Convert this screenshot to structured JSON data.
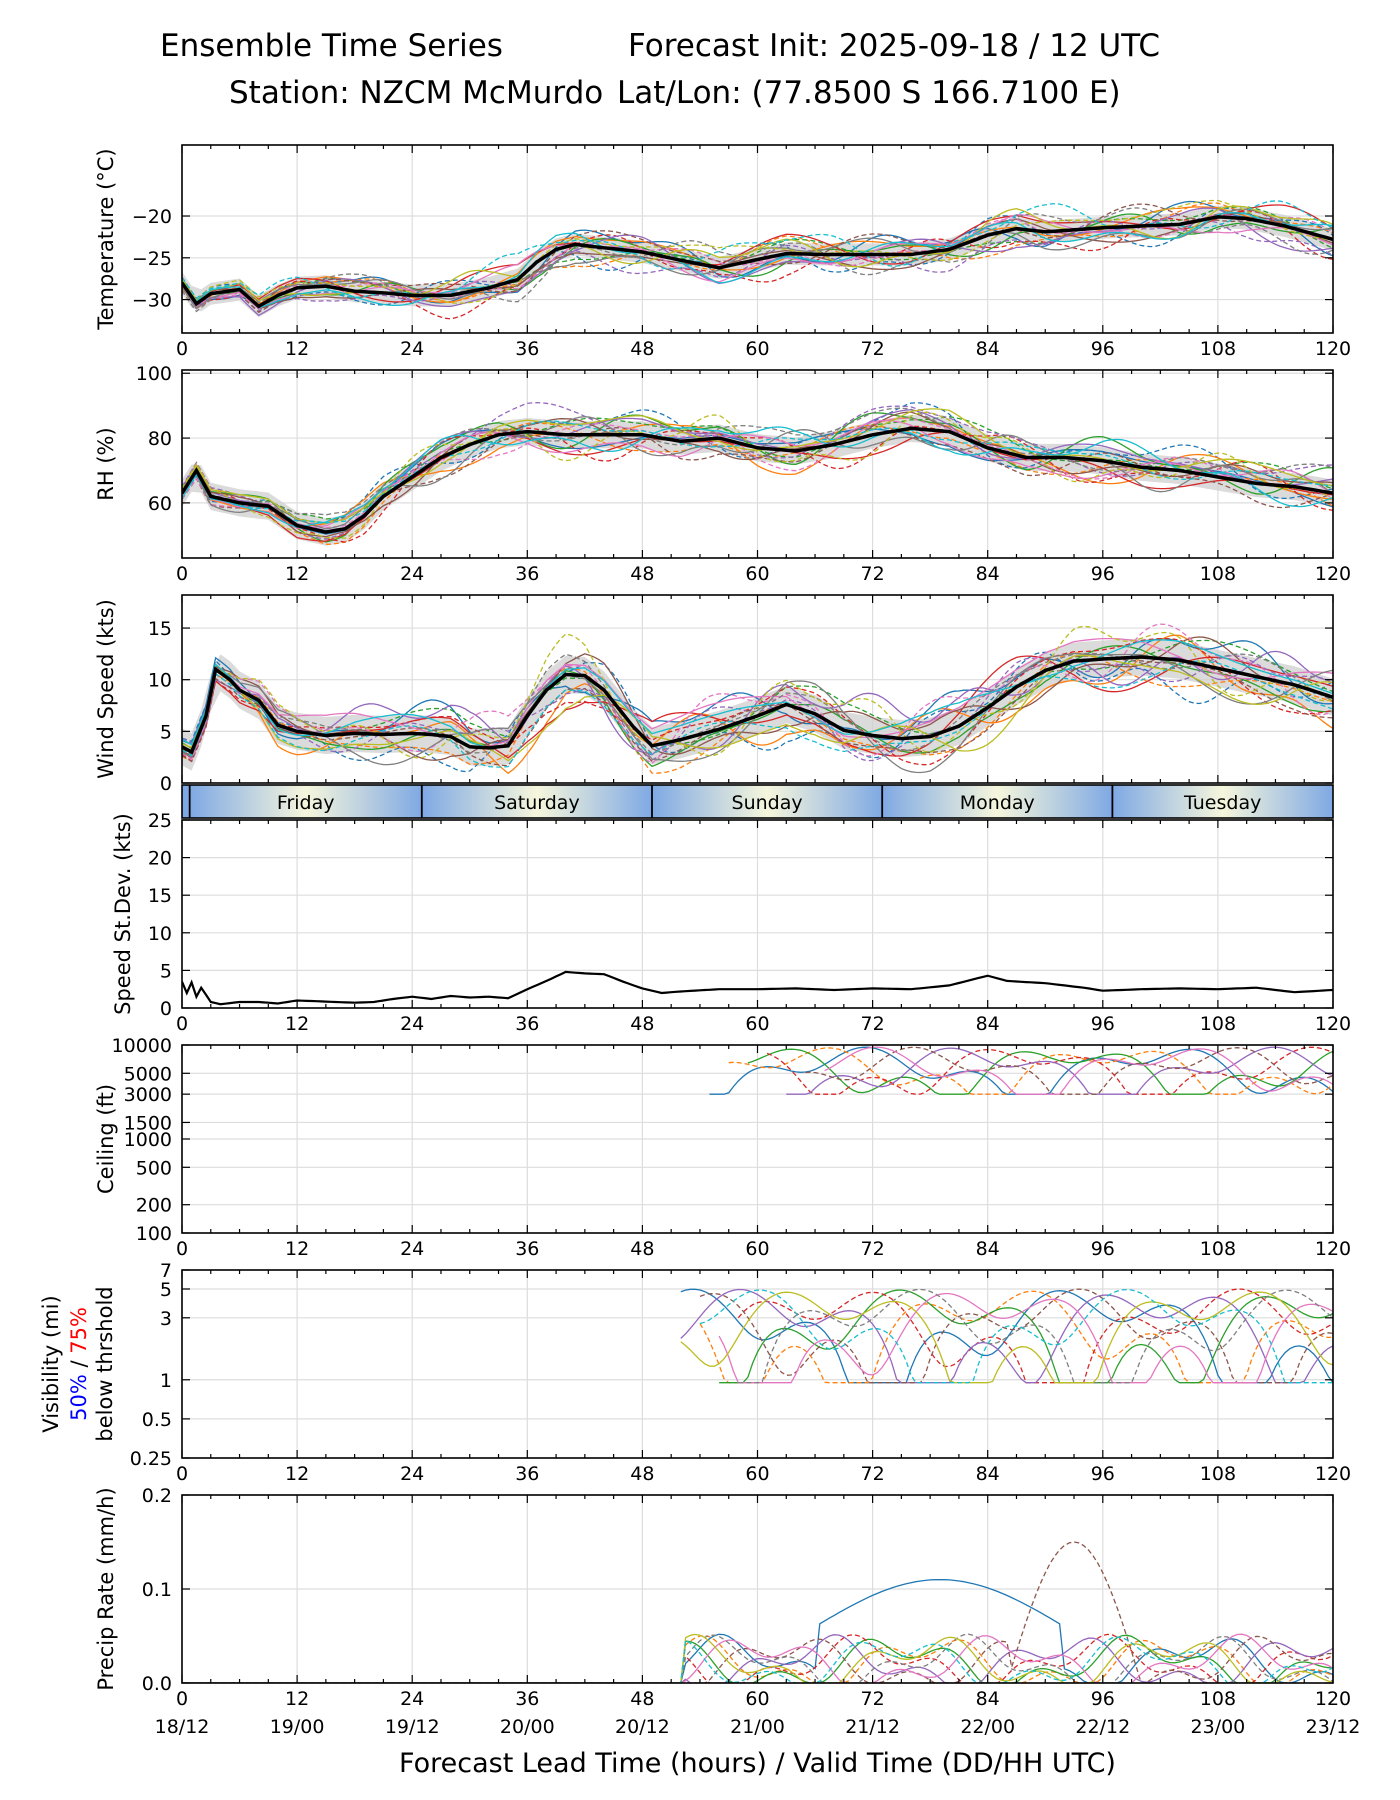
{
  "header": {
    "title_left": "Ensemble Time Series",
    "title_right": "Forecast Init: 2025-09-18 / 12 UTC",
    "station": "Station: NZCM McMurdo",
    "latlon": "Lat/Lon: (77.8500 S 166.7100 E)"
  },
  "chart_data": {
    "type": "line",
    "x_label": "Forecast Lead Time (hours) / Valid Time (DD/HH UTC)",
    "x_range": [
      0,
      120
    ],
    "x_ticks": [
      0,
      12,
      24,
      36,
      48,
      60,
      72,
      84,
      96,
      108,
      120
    ],
    "valid_time_labels": [
      "18/12",
      "19/00",
      "19/12",
      "20/00",
      "20/12",
      "21/00",
      "21/12",
      "22/00",
      "22/12",
      "23/00",
      "23/12"
    ],
    "days": [
      {
        "name": "Friday",
        "start": 0.8,
        "end": 25
      },
      {
        "name": "Saturday",
        "start": 25,
        "end": 49
      },
      {
        "name": "Sunday",
        "start": 49,
        "end": 73
      },
      {
        "name": "Monday",
        "start": 73,
        "end": 97
      },
      {
        "name": "Tuesday",
        "start": 97,
        "end": 120
      }
    ],
    "member_colors": [
      "#1f77b4",
      "#ff7f0e",
      "#2ca02c",
      "#d62728",
      "#9467bd",
      "#8c564b",
      "#e377c2",
      "#7f7f7f",
      "#bcbd22",
      "#17becf"
    ],
    "panels": [
      {
        "id": "temperature",
        "ylabel": "Temperature (°C)",
        "scale": "linear",
        "ylim": [
          -34,
          -11.5
        ],
        "yticks": [
          -30,
          -25,
          -20
        ],
        "ytick_labels": [
          "−30",
          "−25",
          "−20"
        ],
        "spread": 2.2,
        "mean": [
          [
            0,
            -28
          ],
          [
            1.5,
            -30.5
          ],
          [
            3,
            -29.3
          ],
          [
            6,
            -28.8
          ],
          [
            8,
            -30.8
          ],
          [
            10,
            -29.5
          ],
          [
            12,
            -28.6
          ],
          [
            15,
            -28.4
          ],
          [
            18,
            -29
          ],
          [
            21,
            -29.2
          ],
          [
            24,
            -29.5
          ],
          [
            28,
            -29.5
          ],
          [
            32,
            -28.6
          ],
          [
            35,
            -27.6
          ],
          [
            37,
            -25.5
          ],
          [
            39,
            -24
          ],
          [
            41,
            -23.4
          ],
          [
            44,
            -23.8
          ],
          [
            48,
            -24.3
          ],
          [
            52,
            -25.3
          ],
          [
            56,
            -26.2
          ],
          [
            60,
            -25.2
          ],
          [
            63,
            -24.5
          ],
          [
            67,
            -24.6
          ],
          [
            72,
            -24.6
          ],
          [
            76,
            -24.6
          ],
          [
            80,
            -24
          ],
          [
            84,
            -22.3
          ],
          [
            87,
            -21.5
          ],
          [
            90,
            -21.9
          ],
          [
            96,
            -21.4
          ],
          [
            100,
            -21.2
          ],
          [
            104,
            -21
          ],
          [
            108,
            -20.1
          ],
          [
            111,
            -20.3
          ],
          [
            115,
            -21.2
          ],
          [
            120,
            -22.8
          ]
        ]
      },
      {
        "id": "rh",
        "ylabel": "RH (%)",
        "scale": "linear",
        "ylim": [
          43,
          101
        ],
        "yticks": [
          60,
          80,
          100
        ],
        "ytick_labels": [
          "60",
          "80",
          "100"
        ],
        "spread": 7,
        "mean": [
          [
            0,
            63
          ],
          [
            1.5,
            70
          ],
          [
            3,
            62
          ],
          [
            6,
            60
          ],
          [
            9,
            59
          ],
          [
            12,
            53
          ],
          [
            15,
            51
          ],
          [
            17,
            52
          ],
          [
            19,
            56
          ],
          [
            21,
            62
          ],
          [
            24,
            68
          ],
          [
            27,
            74
          ],
          [
            30,
            78
          ],
          [
            33,
            81
          ],
          [
            36,
            82
          ],
          [
            40,
            81
          ],
          [
            44,
            81
          ],
          [
            48,
            81
          ],
          [
            52,
            79
          ],
          [
            56,
            80
          ],
          [
            60,
            77
          ],
          [
            64,
            76
          ],
          [
            68,
            78
          ],
          [
            72,
            81
          ],
          [
            76,
            83
          ],
          [
            80,
            82
          ],
          [
            84,
            77
          ],
          [
            88,
            74
          ],
          [
            92,
            74
          ],
          [
            96,
            73
          ],
          [
            100,
            71
          ],
          [
            104,
            70
          ],
          [
            108,
            68
          ],
          [
            112,
            66
          ],
          [
            116,
            65
          ],
          [
            120,
            63
          ]
        ]
      },
      {
        "id": "wind",
        "ylabel": "Wind Speed (kts)",
        "scale": "linear",
        "ylim": [
          0,
          18.2
        ],
        "yticks": [
          0,
          5,
          10,
          15
        ],
        "ytick_labels": [
          "0",
          "5",
          "10",
          "15"
        ],
        "spread": 3,
        "mean": [
          [
            0,
            3.5
          ],
          [
            1,
            3
          ],
          [
            2.5,
            6.5
          ],
          [
            3.5,
            11
          ],
          [
            5,
            10
          ],
          [
            6,
            9
          ],
          [
            8,
            8
          ],
          [
            10,
            5.6
          ],
          [
            12,
            5
          ],
          [
            15,
            4.6
          ],
          [
            18,
            4.8
          ],
          [
            21,
            4.7
          ],
          [
            24,
            4.8
          ],
          [
            26,
            4.7
          ],
          [
            28,
            4.5
          ],
          [
            30,
            3.5
          ],
          [
            32,
            3.4
          ],
          [
            34,
            3.6
          ],
          [
            36,
            6.5
          ],
          [
            38,
            9
          ],
          [
            40,
            10.5
          ],
          [
            42,
            10.4
          ],
          [
            44,
            9
          ],
          [
            47,
            5.5
          ],
          [
            49,
            3.6
          ],
          [
            52,
            4.2
          ],
          [
            56,
            5.2
          ],
          [
            60,
            6.5
          ],
          [
            63,
            7.6
          ],
          [
            66,
            6.7
          ],
          [
            69,
            5.1
          ],
          [
            72,
            4.6
          ],
          [
            75,
            4.3
          ],
          [
            78,
            4.5
          ],
          [
            81,
            5.5
          ],
          [
            84,
            7.3
          ],
          [
            87,
            9.3
          ],
          [
            90,
            10.9
          ],
          [
            93,
            11.8
          ],
          [
            96,
            12
          ],
          [
            100,
            12.2
          ],
          [
            104,
            11.9
          ],
          [
            108,
            11.1
          ],
          [
            112,
            10.3
          ],
          [
            116,
            9.5
          ],
          [
            120,
            8.3
          ]
        ]
      },
      {
        "id": "speed_stdev",
        "ylabel": "Speed St.Dev. (kts)",
        "scale": "linear",
        "ylim": [
          0,
          25
        ],
        "yticks": [
          0,
          5,
          10,
          15,
          20,
          25
        ],
        "ytick_labels": [
          "0",
          "5",
          "10",
          "15",
          "20",
          "25"
        ],
        "spread": 0,
        "mean": [
          [
            0,
            3.5
          ],
          [
            0.5,
            2
          ],
          [
            1,
            3.4
          ],
          [
            1.5,
            1.5
          ],
          [
            2,
            2.7
          ],
          [
            3,
            0.8
          ],
          [
            4,
            0.5
          ],
          [
            6,
            0.8
          ],
          [
            8,
            0.8
          ],
          [
            10,
            0.6
          ],
          [
            12,
            1
          ],
          [
            14,
            0.9
          ],
          [
            16,
            0.8
          ],
          [
            18,
            0.7
          ],
          [
            20,
            0.8
          ],
          [
            22,
            1.2
          ],
          [
            24,
            1.5
          ],
          [
            26,
            1.2
          ],
          [
            28,
            1.6
          ],
          [
            30,
            1.4
          ],
          [
            32,
            1.5
          ],
          [
            34,
            1.3
          ],
          [
            36,
            2.5
          ],
          [
            38,
            3.6
          ],
          [
            40,
            4.8
          ],
          [
            42,
            4.6
          ],
          [
            44,
            4.5
          ],
          [
            46,
            3.5
          ],
          [
            48,
            2.6
          ],
          [
            50,
            2
          ],
          [
            52,
            2.2
          ],
          [
            56,
            2.5
          ],
          [
            60,
            2.5
          ],
          [
            64,
            2.6
          ],
          [
            68,
            2.4
          ],
          [
            72,
            2.6
          ],
          [
            76,
            2.5
          ],
          [
            80,
            3
          ],
          [
            84,
            4.3
          ],
          [
            86,
            3.6
          ],
          [
            90,
            3.3
          ],
          [
            94,
            2.7
          ],
          [
            96,
            2.3
          ],
          [
            100,
            2.5
          ],
          [
            104,
            2.6
          ],
          [
            108,
            2.5
          ],
          [
            112,
            2.7
          ],
          [
            116,
            2.1
          ],
          [
            120,
            2.4
          ]
        ]
      },
      {
        "id": "ceiling",
        "ylabel": "Ceiling (ft)",
        "scale": "log",
        "ylim": [
          100,
          10000
        ],
        "yticks": [
          100,
          200,
          500,
          1000,
          1500,
          3000,
          5000,
          10000
        ],
        "ytick_labels": [
          "100",
          "200",
          "500",
          "1000",
          "1500",
          "3000",
          "5000",
          "10000"
        ],
        "spread": 0,
        "mean": []
      },
      {
        "id": "visibility",
        "ylabel": "Visibility (mi)",
        "ylabel_extra": "below thrshold",
        "legend_50": "50%",
        "legend_75": "75%",
        "legend_sep": " / ",
        "scale": "log",
        "ylim": [
          0.25,
          7
        ],
        "yticks": [
          0.25,
          0.5,
          1,
          3,
          5,
          7
        ],
        "ytick_labels": [
          "0.25",
          "0.5",
          "1",
          "3",
          "5",
          "7"
        ],
        "spread": 0,
        "mean": []
      },
      {
        "id": "precip",
        "ylabel": "Precip Rate (mm/h)",
        "scale": "linear",
        "ylim": [
          0,
          0.2
        ],
        "yticks": [
          0,
          0.1,
          0.2
        ],
        "ytick_labels": [
          "0.0",
          "0.1",
          "0.2"
        ],
        "spread": 0,
        "mean": []
      }
    ]
  }
}
